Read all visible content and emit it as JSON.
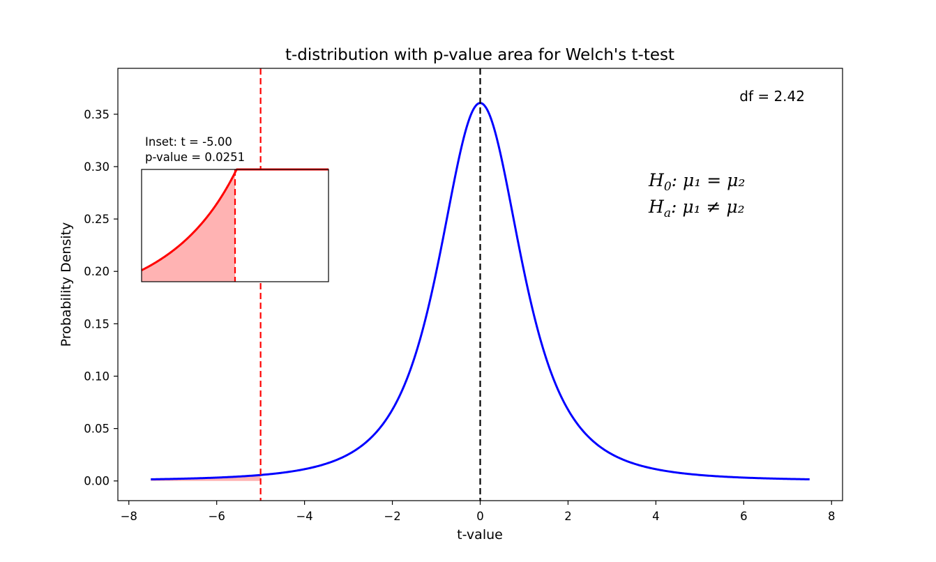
{
  "chart_data": {
    "type": "line",
    "title": "t-distribution with p-value area for Welch's t-test",
    "xlabel": "t-value",
    "ylabel": "Probability Density",
    "xlim": [
      -8.25,
      8.25
    ],
    "ylim": [
      -0.0188,
      0.3938
    ],
    "x_ticks": [
      -8,
      -6,
      -4,
      -2,
      0,
      2,
      4,
      6,
      8
    ],
    "x_tick_labels": [
      "−8",
      "−6",
      "−4",
      "−2",
      "0",
      "2",
      "4",
      "6",
      "8"
    ],
    "y_ticks": [
      0.0,
      0.05,
      0.1,
      0.15,
      0.2,
      0.25,
      0.3,
      0.35
    ],
    "y_tick_labels": [
      "0.00",
      "0.05",
      "0.10",
      "0.15",
      "0.20",
      "0.25",
      "0.30",
      "0.35"
    ],
    "grid": false,
    "series": [
      {
        "color": "#0000ff",
        "x": [
          -7.5,
          -7.0,
          -6.5,
          -6.0,
          -5.5,
          -5.0,
          -4.5,
          -4.0,
          -3.5,
          -3.0,
          -2.5,
          -2.0,
          -1.5,
          -1.0,
          -0.5,
          0.0,
          0.5,
          1.0,
          1.5,
          2.0,
          2.5,
          3.0,
          3.5,
          4.0,
          4.5,
          5.0,
          5.5,
          6.0,
          6.5,
          7.0,
          7.5
        ],
        "y": [
          0.0009,
          0.0012,
          0.0015,
          0.002,
          0.0026,
          0.0036,
          0.0051,
          0.0075,
          0.0114,
          0.0181,
          0.0304,
          0.0534,
          0.0967,
          0.1703,
          0.271,
          0.3753,
          0.271,
          0.1703,
          0.0967,
          0.0534,
          0.0304,
          0.0181,
          0.0114,
          0.0075,
          0.0051,
          0.0036,
          0.0026,
          0.002,
          0.0015,
          0.0012,
          0.0009
        ]
      }
    ],
    "critical_line": {
      "x": -5.0,
      "color": "#ff0000",
      "style": "dashed"
    },
    "center_line": {
      "x": 0.0,
      "color": "#000000",
      "style": "dashed"
    },
    "shaded_tail": {
      "from": -7.5,
      "to": -5.0,
      "color": "#ffb3b3"
    },
    "df_label": "df = 2.42",
    "hypotheses": {
      "h0_main": "H",
      "h0_sub": "0",
      "h0_body": ": μ₁ = μ₂",
      "ha_main": "H",
      "ha_sub": "a",
      "ha_body": ": μ₁ ≠ μ₂"
    },
    "inset": {
      "line1": "Inset: t = -5.00",
      "line2": "p-value = 0.0251",
      "xlim": [
        -7.0,
        -3.0
      ],
      "ylim": [
        0.0015,
        0.0058
      ],
      "marker_x": -5.0,
      "curve_color": "#ff0000",
      "fill_color": "#ffb3b3"
    }
  }
}
